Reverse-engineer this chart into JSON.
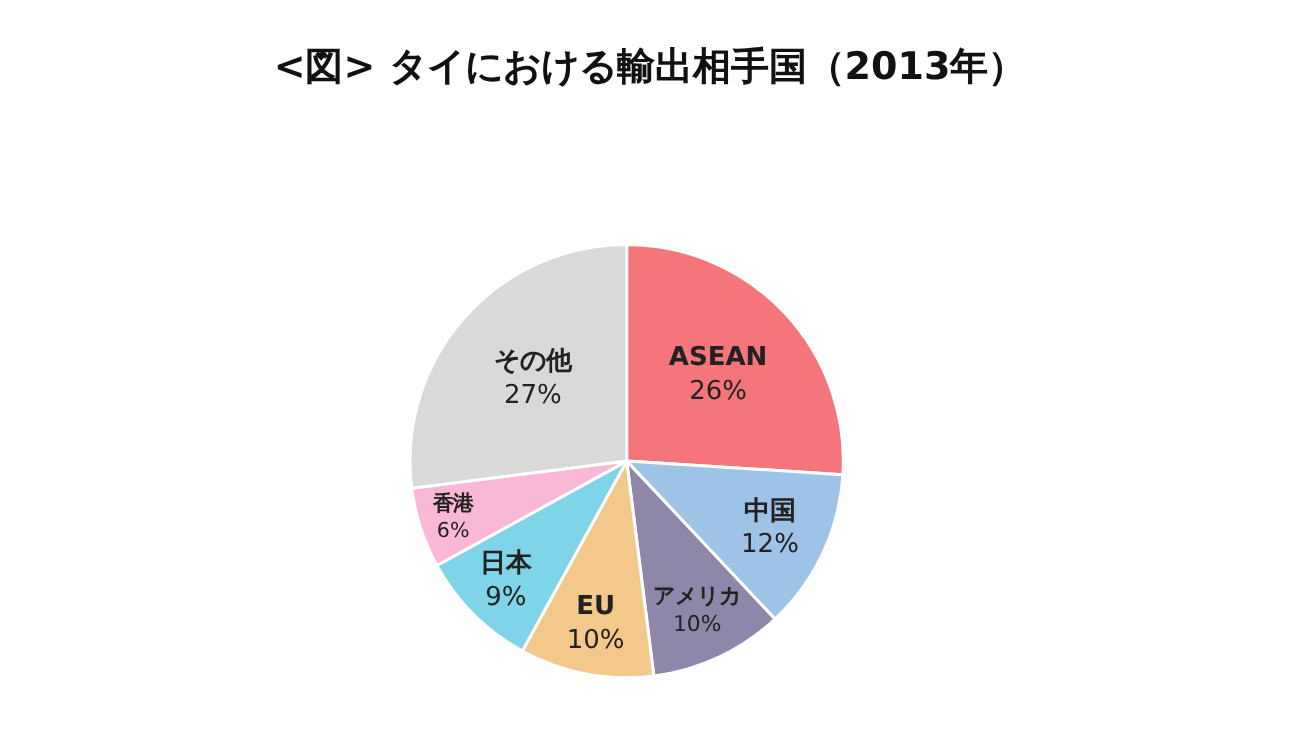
{
  "chart_data": {
    "type": "pie",
    "title": "<図> タイにおける輸出相手国（2013年）",
    "categories": [
      "ASEAN",
      "中国",
      "アメリカ",
      "EU",
      "日本",
      "香港",
      "その他"
    ],
    "values": [
      26,
      12,
      10,
      10,
      9,
      6,
      27
    ],
    "value_labels": [
      "26%",
      "12%",
      "10%",
      "10%",
      "9%",
      "6%",
      "27%"
    ],
    "colors": [
      "#f4767a",
      "#9dc3e6",
      "#8e87a9",
      "#f3c98b",
      "#7fd4e8",
      "#f9b8d6",
      "#d9d9d9"
    ],
    "legend": false
  }
}
